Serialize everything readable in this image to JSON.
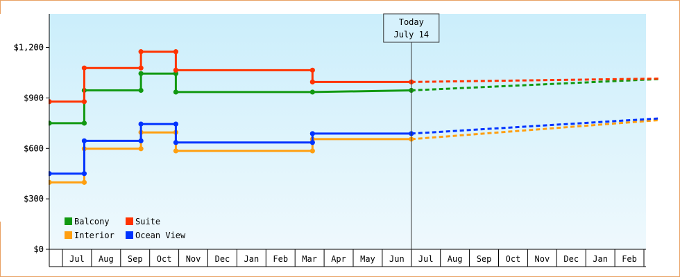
{
  "chart_data": {
    "type": "line",
    "title": "",
    "xlabel": "",
    "ylabel": "",
    "ylim": [
      0,
      1400
    ],
    "y_ticks": [
      0,
      300,
      600,
      900,
      1200
    ],
    "y_tick_labels": [
      "$0",
      "$300",
      "$600",
      "$900",
      "$1,200"
    ],
    "x_tick_labels": [
      "Jul",
      "Aug",
      "Sep",
      "Oct",
      "Nov",
      "Dec",
      "Jan",
      "Feb",
      "Mar",
      "Apr",
      "May",
      "Jun",
      "Jul",
      "Aug",
      "Sep",
      "Oct",
      "Nov",
      "Dec",
      "Jan",
      "Feb"
    ],
    "step": true,
    "grid": false,
    "legend_position": "bottom-left",
    "today_marker": {
      "lines": [
        "Today",
        "July 14"
      ],
      "month_index": 12.0
    },
    "series": [
      {
        "name": "Balcony",
        "color": "#119911",
        "points": [
          [
            -0.5,
            750
          ],
          [
            0.75,
            750
          ],
          [
            0.75,
            945
          ],
          [
            2.7,
            945
          ],
          [
            2.7,
            1045
          ],
          [
            3.9,
            1045
          ],
          [
            3.9,
            935
          ],
          [
            8.6,
            935
          ],
          [
            12.0,
            945
          ]
        ],
        "forecast": [
          [
            12.0,
            945
          ],
          [
            20.5,
            1012
          ]
        ]
      },
      {
        "name": "Suite",
        "color": "#ff3300",
        "points": [
          [
            -0.5,
            878
          ],
          [
            0.75,
            878
          ],
          [
            0.75,
            1078
          ],
          [
            2.7,
            1078
          ],
          [
            2.7,
            1175
          ],
          [
            3.9,
            1175
          ],
          [
            3.9,
            1065
          ],
          [
            8.6,
            1065
          ],
          [
            8.6,
            995
          ],
          [
            12.0,
            995
          ]
        ],
        "forecast": [
          [
            12.0,
            995
          ],
          [
            20.5,
            1015
          ]
        ]
      },
      {
        "name": "Interior",
        "color": "#ff9f10",
        "points": [
          [
            -0.5,
            398
          ],
          [
            0.75,
            398
          ],
          [
            0.75,
            598
          ],
          [
            2.7,
            598
          ],
          [
            2.7,
            695
          ],
          [
            3.9,
            695
          ],
          [
            3.9,
            585
          ],
          [
            8.6,
            585
          ],
          [
            8.6,
            655
          ],
          [
            12.0,
            655
          ]
        ],
        "forecast": [
          [
            12.0,
            655
          ],
          [
            20.5,
            768
          ]
        ]
      },
      {
        "name": "Ocean View",
        "color": "#0033ff",
        "points": [
          [
            -0.5,
            450
          ],
          [
            0.75,
            450
          ],
          [
            0.75,
            645
          ],
          [
            2.7,
            645
          ],
          [
            2.7,
            745
          ],
          [
            3.9,
            745
          ],
          [
            3.9,
            635
          ],
          [
            8.6,
            635
          ],
          [
            8.6,
            688
          ],
          [
            12.0,
            688
          ]
        ],
        "forecast": [
          [
            12.0,
            688
          ],
          [
            20.5,
            778
          ]
        ]
      }
    ]
  }
}
